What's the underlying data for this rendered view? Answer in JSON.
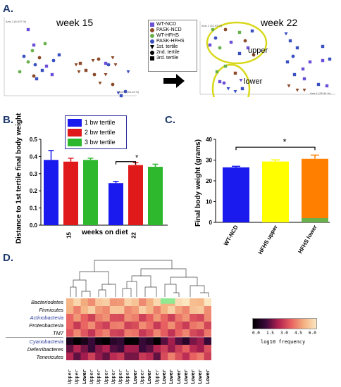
{
  "panels": {
    "a": "A.",
    "b": "B.",
    "c": "C.",
    "d": "D."
  },
  "panel_a": {
    "left_title": "week 15",
    "right_title": "week 22",
    "left_axis2": "Axis 2 (8.637 %)",
    "left_axis1": "Axis 1 (33.24 %)",
    "right_axis2": "Axis 2 (10.93 %)",
    "right_axis1": "Axis 1 (33.44 %)",
    "upper_label": "upper",
    "lower_label": "lower",
    "legend": [
      {
        "label": "WT-NCD",
        "color": "#6b4fd8",
        "shape": "square"
      },
      {
        "label": "PASK-NCD",
        "color": "#8b4a2a",
        "shape": "circle"
      },
      {
        "label": "WT-HFHS",
        "color": "#6ab04c",
        "shape": "circle"
      },
      {
        "label": "PASK-HFHS",
        "color": "#3a4fc0",
        "shape": "circle"
      },
      {
        "label": "1st. tertile",
        "shape": "triangle"
      },
      {
        "label": "2nd. tertile",
        "shape": "circle"
      },
      {
        "label": "3rd. tertile",
        "shape": "square"
      }
    ],
    "colors": {
      "ellipse": "#d8d81a"
    }
  },
  "chart_data": [
    {
      "type": "bar",
      "ylabel": "Distance to 1st tertile final body weight",
      "xlabel": "weeks on diet",
      "categories": [
        "15",
        "22"
      ],
      "ylim": [
        0,
        0.5
      ],
      "yticks": [
        "0.0",
        "0.1",
        "0.2",
        "0.3",
        "0.4",
        "0.5"
      ],
      "series": [
        {
          "name": "1 bw tertile",
          "color": "#1a1aee",
          "values": [
            0.38,
            0.245
          ],
          "err": [
            0.055,
            0.01
          ]
        },
        {
          "name": "2 bw tertile",
          "color": "#e01a1a",
          "values": [
            0.37,
            0.35
          ],
          "err": [
            0.02,
            0.015
          ]
        },
        {
          "name": "3 bw tertile",
          "color": "#2eb82e",
          "values": [
            0.38,
            0.34
          ],
          "err": [
            0.01,
            0.015
          ]
        }
      ],
      "annotation": "*"
    },
    {
      "type": "bar",
      "ylabel": "Final body weight (grams)",
      "categories": [
        "WT-NCD",
        "HFHS upper",
        "HFHS lower"
      ],
      "ylim": [
        0,
        40
      ],
      "yticks": [
        "0",
        "10",
        "20",
        "30",
        "40"
      ],
      "values": [
        26.5,
        29.3,
        30.6
      ],
      "err": [
        0.5,
        0.8,
        1.8
      ],
      "colors": [
        "#1a1aee",
        "#ffff00",
        "#ff8000"
      ],
      "annotation": "*"
    },
    {
      "type": "heatmap",
      "rows": [
        "Bacteriodetes",
        "Firmicutes",
        "Actinobacteria",
        "Proteobacteria",
        "TM7",
        "Cyanobacteria",
        "Deferribacteres",
        "Tenericutes"
      ],
      "columns": [
        "Upper",
        "Upper",
        "Lower",
        "Upper",
        "Upper",
        "Upper",
        "Upper",
        "Upper",
        "Upper",
        "Lower",
        "Upper",
        "Lower",
        "Upper",
        "Lower",
        "Lower",
        "Lower",
        "Lower",
        "Lower",
        "Lower",
        "Lower"
      ],
      "scale_label": "log10 frequency",
      "scale_ticks": [
        "0.0",
        "1.5",
        "3.0",
        "4.5",
        "6.0"
      ]
    }
  ]
}
